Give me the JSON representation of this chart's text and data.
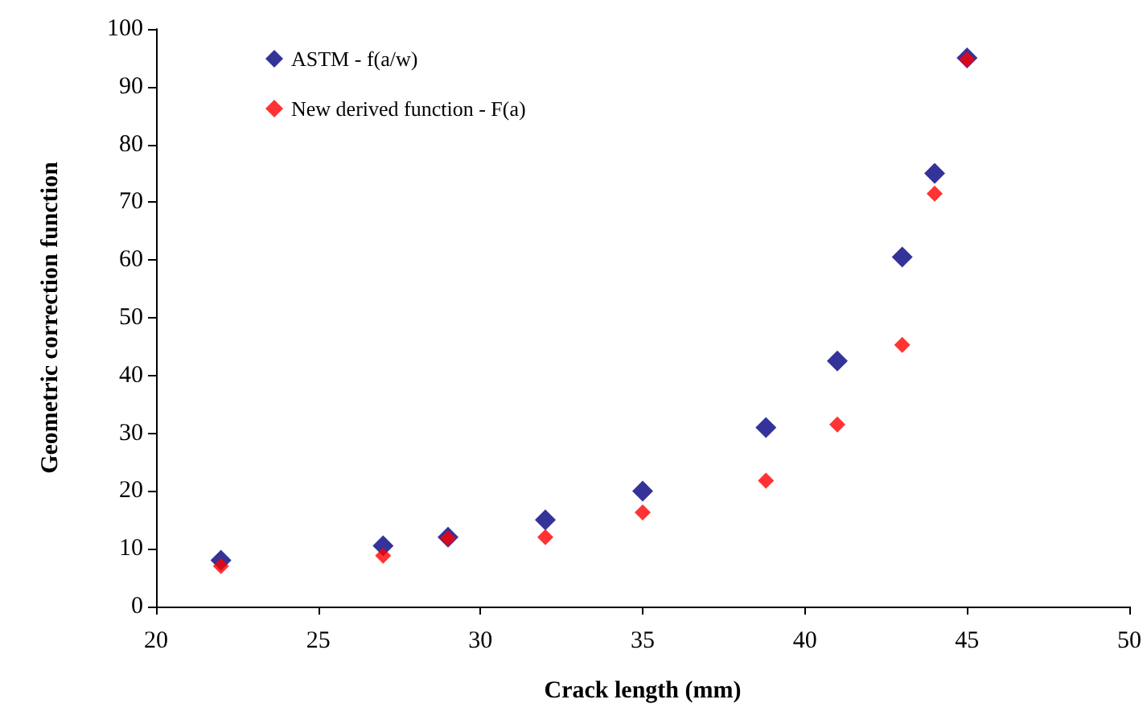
{
  "chart_data": {
    "type": "scatter",
    "xlabel": "Crack length (mm)",
    "ylabel": "Geometric correction function",
    "x": [
      22,
      27,
      29,
      32,
      35,
      38.8,
      41,
      43,
      44,
      45
    ],
    "series": [
      {
        "name": "ASTM - f(a/w)",
        "color": "#000080",
        "values": [
          8,
          10.5,
          12,
          15,
          20,
          31,
          42.5,
          60.5,
          75,
          95
        ]
      },
      {
        "name": "New derived function - F(a)",
        "color": "#ff0000",
        "values": [
          7,
          8.8,
          11.8,
          12,
          16.3,
          21.8,
          31.5,
          45.3,
          71.5,
          94.7
        ]
      }
    ],
    "xlim": [
      20,
      50
    ],
    "xticks": [
      20,
      25,
      30,
      35,
      40,
      45,
      50
    ],
    "ylim": [
      0,
      100
    ],
    "yticks": [
      0,
      10,
      20,
      30,
      40,
      50,
      60,
      70,
      80,
      90,
      100
    ],
    "grid": false,
    "legend": "top left",
    "marker": "diamond"
  }
}
